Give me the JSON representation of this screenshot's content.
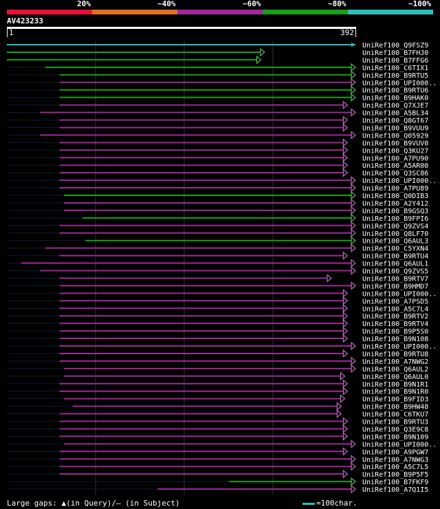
{
  "query": {
    "id": "AV423233",
    "start": "1",
    "end": "392"
  },
  "scale": {
    "labels": [
      "20%",
      "~40%",
      "~60%",
      "~80%",
      "~100%"
    ],
    "colors": [
      "#e8103a",
      "#e0701e",
      "#a02898",
      "#18a018",
      "#2cc0c0"
    ]
  },
  "footer": {
    "legend": "Large gaps: ▲(in Query)/— (in Subject)",
    "key": "=100char."
  },
  "chart_data": {
    "type": "alignment",
    "query_length": 392,
    "hits": [
      {
        "name": "UniRef100_Q9FSZ9",
        "start": 1,
        "end": 392,
        "identity": "~100%",
        "color": "#2cc0c0",
        "arrow": false
      },
      {
        "name": "UniRef100_B7FHJ0",
        "start": 1,
        "end": 290,
        "identity": "~80%",
        "color": "#18a018",
        "arrow": true
      },
      {
        "name": "UniRef100_B7FFG6",
        "start": 1,
        "end": 286,
        "identity": "~80%",
        "color": "#18a018",
        "arrow": true
      },
      {
        "name": "UniRef100_C6TIX1",
        "start": 44,
        "end": 392,
        "identity": "~80%",
        "color": "#18a018",
        "arrow": true
      },
      {
        "name": "UniRef100_B9RTU5",
        "start": 60,
        "end": 392,
        "identity": "~80%",
        "color": "#18a018",
        "arrow": true
      },
      {
        "name": "UniRef100_UPI000..",
        "start": 60,
        "end": 392,
        "identity": "~60%",
        "color": "#a02898",
        "arrow": true
      },
      {
        "name": "UniRef100_B9RTU6",
        "start": 60,
        "end": 392,
        "identity": "~80%",
        "color": "#18a018",
        "arrow": true
      },
      {
        "name": "UniRef100_B9HAK0",
        "start": 60,
        "end": 392,
        "identity": "~80%",
        "color": "#18a018",
        "arrow": true
      },
      {
        "name": "UniRef100_Q7XJE7",
        "start": 60,
        "end": 383,
        "identity": "~60%",
        "color": "#a02898",
        "arrow": true
      },
      {
        "name": "UniRef100_A5BL34",
        "start": 38,
        "end": 392,
        "identity": "~60%",
        "color": "#a02898",
        "arrow": true
      },
      {
        "name": "UniRef100_Q8GT67",
        "start": 60,
        "end": 383,
        "identity": "~60%",
        "color": "#a02898",
        "arrow": true
      },
      {
        "name": "UniRef100_B9VUU9",
        "start": 60,
        "end": 383,
        "identity": "~60%",
        "color": "#a02898",
        "arrow": true
      },
      {
        "name": "UniRef100_Q05929",
        "start": 38,
        "end": 392,
        "identity": "~60%",
        "color": "#a02898",
        "arrow": true
      },
      {
        "name": "UniRef100_B9VUV0",
        "start": 60,
        "end": 383,
        "identity": "~60%",
        "color": "#a02898",
        "arrow": true
      },
      {
        "name": "UniRef100_Q3KU27",
        "start": 60,
        "end": 383,
        "identity": "~60%",
        "color": "#a02898",
        "arrow": true
      },
      {
        "name": "UniRef100_A7PU90",
        "start": 60,
        "end": 383,
        "identity": "~60%",
        "color": "#a02898",
        "arrow": true
      },
      {
        "name": "UniRef100_A5AR00",
        "start": 60,
        "end": 383,
        "identity": "~60%",
        "color": "#a02898",
        "arrow": true
      },
      {
        "name": "UniRef100_Q3SC86",
        "start": 60,
        "end": 383,
        "identity": "~60%",
        "color": "#a02898",
        "arrow": true
      },
      {
        "name": "UniRef100_UPI000..",
        "start": 60,
        "end": 392,
        "identity": "~60%",
        "color": "#a02898",
        "arrow": true
      },
      {
        "name": "UniRef100_A7PU89",
        "start": 60,
        "end": 392,
        "identity": "~60%",
        "color": "#a02898",
        "arrow": true
      },
      {
        "name": "UniRef100_Q0DIB3",
        "start": 65,
        "end": 392,
        "identity": "~80%",
        "color": "#18a018",
        "arrow": true
      },
      {
        "name": "UniRef100_A2Y412",
        "start": 65,
        "end": 392,
        "identity": "~60%",
        "color": "#a02898",
        "arrow": true
      },
      {
        "name": "UniRef100_B9GSQ3",
        "start": 65,
        "end": 392,
        "identity": "~60%",
        "color": "#a02898",
        "arrow": true
      },
      {
        "name": "UniRef100_B9FPI6",
        "start": 86,
        "end": 392,
        "identity": "~80%",
        "color": "#18a018",
        "arrow": true
      },
      {
        "name": "UniRef100_Q9ZVS4",
        "start": 60,
        "end": 392,
        "identity": "~60%",
        "color": "#a02898",
        "arrow": true
      },
      {
        "name": "UniRef100_Q8LF70",
        "start": 60,
        "end": 392,
        "identity": "~60%",
        "color": "#a02898",
        "arrow": true
      },
      {
        "name": "UniRef100_Q6AUL3",
        "start": 89,
        "end": 392,
        "identity": "~80%",
        "color": "#18a018",
        "arrow": true
      },
      {
        "name": "UniRef100_C5YXN4",
        "start": 44,
        "end": 392,
        "identity": "~60%",
        "color": "#a02898",
        "arrow": true
      },
      {
        "name": "UniRef100_B9RTU4",
        "start": 60,
        "end": 383,
        "identity": "~60%",
        "color": "#a02898",
        "arrow": true
      },
      {
        "name": "UniRef100_Q6AUL1",
        "start": 17,
        "end": 392,
        "identity": "~60%",
        "color": "#a02898",
        "arrow": true
      },
      {
        "name": "UniRef100_Q9ZVS5",
        "start": 38,
        "end": 392,
        "identity": "~60%",
        "color": "#a02898",
        "arrow": true
      },
      {
        "name": "UniRef100_B9RTV7",
        "start": 60,
        "end": 365,
        "identity": "~60%",
        "color": "#a02898",
        "arrow": true
      },
      {
        "name": "UniRef100_B9HMD7",
        "start": 60,
        "end": 392,
        "identity": "~60%",
        "color": "#a02898",
        "arrow": true
      },
      {
        "name": "UniRef100_UPI000..",
        "start": 60,
        "end": 383,
        "identity": "~60%",
        "color": "#a02898",
        "arrow": true
      },
      {
        "name": "UniRef100_A7PSD5",
        "start": 60,
        "end": 383,
        "identity": "~60%",
        "color": "#a02898",
        "arrow": true
      },
      {
        "name": "UniRef100_A5C7L4",
        "start": 60,
        "end": 383,
        "identity": "~60%",
        "color": "#a02898",
        "arrow": true
      },
      {
        "name": "UniRef100_B9RTV2",
        "start": 60,
        "end": 383,
        "identity": "~60%",
        "color": "#a02898",
        "arrow": true
      },
      {
        "name": "UniRef100_B9RTV4",
        "start": 60,
        "end": 383,
        "identity": "~60%",
        "color": "#a02898",
        "arrow": true
      },
      {
        "name": "UniRef100_B9P5S0",
        "start": 60,
        "end": 383,
        "identity": "~60%",
        "color": "#a02898",
        "arrow": true
      },
      {
        "name": "UniRef100_B9N108",
        "start": 60,
        "end": 383,
        "identity": "~60%",
        "color": "#a02898",
        "arrow": true
      },
      {
        "name": "UniRef100_UPI000..",
        "start": 60,
        "end": 392,
        "identity": "~60%",
        "color": "#a02898",
        "arrow": true
      },
      {
        "name": "UniRef100_B9RTU8",
        "start": 60,
        "end": 383,
        "identity": "~60%",
        "color": "#a02898",
        "arrow": true
      },
      {
        "name": "UniRef100_A7NWG2",
        "start": 60,
        "end": 392,
        "identity": "~60%",
        "color": "#a02898",
        "arrow": true
      },
      {
        "name": "UniRef100_Q6AUL2",
        "start": 65,
        "end": 392,
        "identity": "~60%",
        "color": "#a02898",
        "arrow": true
      },
      {
        "name": "UniRef100_Q6AUL0",
        "start": 65,
        "end": 380,
        "identity": "~60%",
        "color": "#a02898",
        "arrow": true
      },
      {
        "name": "UniRef100_B9N1R1",
        "start": 60,
        "end": 383,
        "identity": "~60%",
        "color": "#a02898",
        "arrow": true
      },
      {
        "name": "UniRef100_B9N1R0",
        "start": 60,
        "end": 383,
        "identity": "~60%",
        "color": "#a02898",
        "arrow": true
      },
      {
        "name": "UniRef100_B9FID3",
        "start": 65,
        "end": 380,
        "identity": "~60%",
        "color": "#a02898",
        "arrow": true
      },
      {
        "name": "UniRef100_B9HW48",
        "start": 75,
        "end": 376,
        "identity": "~60%",
        "color": "#a02898",
        "arrow": true
      },
      {
        "name": "UniRef100_C6TKU7",
        "start": 60,
        "end": 376,
        "identity": "~60%",
        "color": "#a02898",
        "arrow": true
      },
      {
        "name": "UniRef100_B9RTU3",
        "start": 60,
        "end": 383,
        "identity": "~60%",
        "color": "#a02898",
        "arrow": true
      },
      {
        "name": "UniRef100_Q3E9C8",
        "start": 60,
        "end": 383,
        "identity": "~60%",
        "color": "#a02898",
        "arrow": true
      },
      {
        "name": "UniRef100_B9N109",
        "start": 60,
        "end": 383,
        "identity": "~60%",
        "color": "#a02898",
        "arrow": true
      },
      {
        "name": "UniRef100_UPI000..",
        "start": 65,
        "end": 392,
        "identity": "~60%",
        "color": "#a02898",
        "arrow": true
      },
      {
        "name": "UniRef100_A9PGW7",
        "start": 60,
        "end": 383,
        "identity": "~60%",
        "color": "#a02898",
        "arrow": true
      },
      {
        "name": "UniRef100_A7NWG3",
        "start": 60,
        "end": 392,
        "identity": "~60%",
        "color": "#a02898",
        "arrow": true
      },
      {
        "name": "UniRef100_A5C7L5",
        "start": 60,
        "end": 392,
        "identity": "~60%",
        "color": "#a02898",
        "arrow": true
      },
      {
        "name": "UniRef100_B9P5F5",
        "start": 60,
        "end": 383,
        "identity": "~60%",
        "color": "#a02898",
        "arrow": true
      },
      {
        "name": "UniRef100_B7FKF9",
        "start": 250,
        "end": 392,
        "identity": "~80%",
        "color": "#18a018",
        "arrow": true
      },
      {
        "name": "UniRef100_A7Q1I5",
        "start": 170,
        "end": 392,
        "identity": "~60%",
        "color": "#a02898",
        "arrow": true
      }
    ]
  }
}
